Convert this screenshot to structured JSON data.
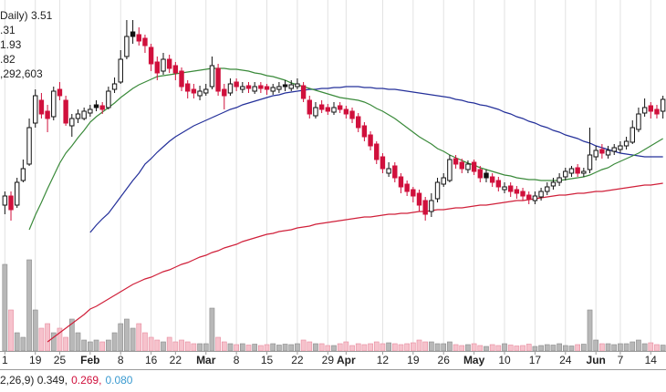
{
  "chart_data": {
    "type": "candlestick",
    "title": "Daily) 3.51",
    "categories": [
      "1",
      null,
      null,
      null,
      null,
      "19",
      null,
      null,
      null,
      "25",
      null,
      null,
      null,
      null,
      "Feb",
      null,
      null,
      null,
      null,
      "8",
      null,
      null,
      null,
      null,
      "16",
      null,
      null,
      null,
      "22",
      null,
      null,
      null,
      null,
      "Mar",
      null,
      null,
      null,
      null,
      "8",
      null,
      null,
      null,
      null,
      "15",
      null,
      null,
      null,
      null,
      "22",
      null,
      null,
      null,
      null,
      "29",
      null,
      null,
      "Apr",
      null,
      null,
      null,
      null,
      null,
      "12",
      null,
      null,
      null,
      null,
      "19",
      null,
      null,
      null,
      null,
      "26",
      null,
      null,
      null,
      null,
      "May",
      null,
      null,
      null,
      null,
      "10",
      null,
      null,
      null,
      null,
      "17",
      null,
      null,
      null,
      null,
      "24",
      null,
      null,
      null,
      null,
      "Jun",
      null,
      null,
      null,
      "7",
      null,
      null,
      null,
      null,
      "14",
      null,
      null
    ],
    "open": [
      2.35,
      2.45,
      2.35,
      2.62,
      2.8,
      3.25,
      3.5,
      3.38,
      3.32,
      3.62,
      3.5,
      3.22,
      3.3,
      3.3,
      3.36,
      3.45,
      3.44,
      3.42,
      3.62,
      3.7,
      3.98,
      4.25,
      4.22,
      4.18,
      4.08,
      3.92,
      3.82,
      3.95,
      3.88,
      3.82,
      3.68,
      3.62,
      3.55,
      3.58,
      3.65,
      3.85,
      3.62,
      3.58,
      3.7,
      3.62,
      3.66,
      3.6,
      3.66,
      3.65,
      3.6,
      3.62,
      3.67,
      3.63,
      3.65,
      3.66,
      3.5,
      3.33,
      3.45,
      3.42,
      3.37,
      3.44,
      3.4,
      3.38,
      3.32,
      3.22,
      3.12,
      3.02,
      2.88,
      2.7,
      2.78,
      2.66,
      2.58,
      2.52,
      2.48,
      2.4,
      2.28,
      2.42,
      2.58,
      2.62,
      2.86,
      2.82,
      2.74,
      2.82,
      2.74,
      2.7,
      2.66,
      2.62,
      2.52,
      2.56,
      2.52,
      2.5,
      2.46,
      2.4,
      2.44,
      2.5,
      2.56,
      2.6,
      2.66,
      2.7,
      2.76,
      2.7,
      2.74,
      2.88,
      2.96,
      2.9,
      2.94,
      2.96,
      3.0,
      3.04,
      3.18,
      3.36,
      3.44,
      3.4,
      3.38
    ],
    "high": [
      2.5,
      2.5,
      2.65,
      2.85,
      3.3,
      3.62,
      3.58,
      3.45,
      3.65,
      3.7,
      3.55,
      3.35,
      3.4,
      3.42,
      3.45,
      3.5,
      3.48,
      3.65,
      3.75,
      4.05,
      4.38,
      4.38,
      4.3,
      4.22,
      4.12,
      3.98,
      4.02,
      4.0,
      3.92,
      3.86,
      3.72,
      3.68,
      3.66,
      3.68,
      3.98,
      3.9,
      3.68,
      3.74,
      3.74,
      3.7,
      3.7,
      3.7,
      3.7,
      3.68,
      3.68,
      3.7,
      3.72,
      3.72,
      3.74,
      3.7,
      3.55,
      3.48,
      3.5,
      3.46,
      3.48,
      3.48,
      3.44,
      3.42,
      3.36,
      3.26,
      3.16,
      3.05,
      2.92,
      2.82,
      2.82,
      2.7,
      2.62,
      2.55,
      2.52,
      2.44,
      2.48,
      2.65,
      2.7,
      2.9,
      2.9,
      2.86,
      2.84,
      2.85,
      2.78,
      2.74,
      2.7,
      2.66,
      2.6,
      2.6,
      2.56,
      2.54,
      2.5,
      2.5,
      2.54,
      2.6,
      2.65,
      2.7,
      2.76,
      2.78,
      2.8,
      2.76,
      3.2,
      3.0,
      3.02,
      3.0,
      3.02,
      3.05,
      3.1,
      3.28,
      3.42,
      3.52,
      3.48,
      3.45,
      3.55
    ],
    "low": [
      2.25,
      2.18,
      2.32,
      2.6,
      2.78,
      3.2,
      3.3,
      3.15,
      3.28,
      3.5,
      3.22,
      3.1,
      3.25,
      3.28,
      3.32,
      3.38,
      3.35,
      3.4,
      3.58,
      3.68,
      3.95,
      4.12,
      4.1,
      4.02,
      3.82,
      3.72,
      3.78,
      3.8,
      3.72,
      3.6,
      3.52,
      3.52,
      3.5,
      3.55,
      3.62,
      3.55,
      3.4,
      3.55,
      3.6,
      3.58,
      3.58,
      3.57,
      3.58,
      3.56,
      3.56,
      3.58,
      3.6,
      3.6,
      3.62,
      3.48,
      3.3,
      3.3,
      3.36,
      3.34,
      3.34,
      3.36,
      3.3,
      3.25,
      3.15,
      3.05,
      2.95,
      2.8,
      2.7,
      2.66,
      2.6,
      2.48,
      2.45,
      2.38,
      2.28,
      2.18,
      2.22,
      2.38,
      2.55,
      2.6,
      2.75,
      2.7,
      2.7,
      2.68,
      2.6,
      2.6,
      2.55,
      2.5,
      2.48,
      2.44,
      2.42,
      2.4,
      2.36,
      2.36,
      2.4,
      2.46,
      2.52,
      2.56,
      2.62,
      2.66,
      2.66,
      2.66,
      2.7,
      2.84,
      2.86,
      2.86,
      2.9,
      2.92,
      2.96,
      3.02,
      3.15,
      3.32,
      3.3,
      3.3,
      3.3
    ],
    "close": [
      2.45,
      2.3,
      2.6,
      2.75,
      3.2,
      3.55,
      3.35,
      3.3,
      3.6,
      3.55,
      3.25,
      3.3,
      3.35,
      3.38,
      3.4,
      3.42,
      3.4,
      3.6,
      3.68,
      3.95,
      4.2,
      4.2,
      4.15,
      4.1,
      3.9,
      3.8,
      3.95,
      3.85,
      3.8,
      3.65,
      3.6,
      3.58,
      3.6,
      3.62,
      3.88,
      3.6,
      3.55,
      3.68,
      3.65,
      3.65,
      3.63,
      3.65,
      3.63,
      3.62,
      3.64,
      3.65,
      3.65,
      3.67,
      3.68,
      3.52,
      3.35,
      3.42,
      3.4,
      3.38,
      3.42,
      3.4,
      3.35,
      3.3,
      3.2,
      3.1,
      3.0,
      2.85,
      2.75,
      2.75,
      2.65,
      2.55,
      2.5,
      2.45,
      2.35,
      2.25,
      2.4,
      2.6,
      2.65,
      2.85,
      2.8,
      2.75,
      2.8,
      2.72,
      2.65,
      2.65,
      2.6,
      2.55,
      2.55,
      2.5,
      2.48,
      2.45,
      2.42,
      2.45,
      2.5,
      2.55,
      2.6,
      2.65,
      2.72,
      2.75,
      2.7,
      2.72,
      2.9,
      2.95,
      2.92,
      2.95,
      2.98,
      3.0,
      3.05,
      3.2,
      3.35,
      3.42,
      3.38,
      3.35,
      3.51
    ],
    "up_color": "#111111",
    "down_color": "#d0103c",
    "ylim": [
      0.75,
      4.6
    ],
    "y2lim": [
      0,
      77000000
    ],
    "volume_up_color": "#b8b8b8",
    "volume_down_color": "#f6c2cc",
    "grid": true,
    "series": [
      {
        "name": ".31",
        "color": "#24309a",
        "values": [
          null,
          null,
          null,
          null,
          null,
          null,
          null,
          null,
          null,
          null,
          null,
          null,
          null,
          null,
          2.05,
          2.13,
          2.2,
          2.26,
          2.35,
          2.44,
          2.53,
          2.62,
          2.7,
          2.8,
          2.86,
          2.93,
          2.99,
          3.05,
          3.1,
          3.14,
          3.18,
          3.22,
          3.25,
          3.28,
          3.31,
          3.34,
          3.37,
          3.4,
          3.42,
          3.45,
          3.47,
          3.49,
          3.51,
          3.53,
          3.55,
          3.56,
          3.58,
          3.59,
          3.6,
          3.61,
          3.62,
          3.62,
          3.63,
          3.63,
          3.64,
          3.64,
          3.65,
          3.65,
          3.65,
          3.64,
          3.64,
          3.63,
          3.63,
          3.62,
          3.62,
          3.61,
          3.6,
          3.59,
          3.58,
          3.57,
          3.56,
          3.55,
          3.54,
          3.53,
          3.51,
          3.5,
          3.48,
          3.47,
          3.45,
          3.44,
          3.42,
          3.4,
          3.37,
          3.35,
          3.32,
          3.3,
          3.27,
          3.25,
          3.22,
          3.2,
          3.17,
          3.15,
          3.12,
          3.1,
          3.08,
          3.05,
          3.03,
          3.0,
          2.98,
          2.96,
          2.94,
          2.92,
          2.91,
          2.9,
          2.89,
          2.88,
          2.88,
          2.88,
          2.88
        ]
      },
      {
        "name": "1.93",
        "color": "#d0203a",
        "values": [
          null,
          null,
          null,
          null,
          null,
          null,
          null,
          0.85,
          0.9,
          0.95,
          1.0,
          1.05,
          1.1,
          1.15,
          1.21,
          1.24,
          1.28,
          1.32,
          1.36,
          1.4,
          1.44,
          1.48,
          1.51,
          1.54,
          1.56,
          1.59,
          1.62,
          1.64,
          1.67,
          1.7,
          1.72,
          1.75,
          1.78,
          1.8,
          1.83,
          1.85,
          1.88,
          1.9,
          1.92,
          1.95,
          1.97,
          1.99,
          2.01,
          2.03,
          2.04,
          2.06,
          2.07,
          2.08,
          2.1,
          2.11,
          2.12,
          2.14,
          2.15,
          2.16,
          2.17,
          2.18,
          2.19,
          2.2,
          2.21,
          2.22,
          2.22,
          2.23,
          2.24,
          2.25,
          2.25,
          2.26,
          2.26,
          2.27,
          2.28,
          2.28,
          2.29,
          2.3,
          2.3,
          2.31,
          2.32,
          2.32,
          2.33,
          2.34,
          2.35,
          2.35,
          2.36,
          2.37,
          2.38,
          2.39,
          2.4,
          2.4,
          2.41,
          2.42,
          2.43,
          2.44,
          2.45,
          2.46,
          2.46,
          2.47,
          2.48,
          2.48,
          2.49,
          2.5,
          2.5,
          2.51,
          2.52,
          2.53,
          2.54,
          2.55,
          2.56,
          2.57,
          2.57,
          2.58,
          2.59
        ]
      },
      {
        "name": ".82",
        "color": "#3a8a3a",
        "values": [
          null,
          null,
          null,
          null,
          2.08,
          2.24,
          2.38,
          2.53,
          2.67,
          2.81,
          2.92,
          3.0,
          3.09,
          3.17,
          3.26,
          3.32,
          3.37,
          3.42,
          3.47,
          3.53,
          3.58,
          3.63,
          3.67,
          3.7,
          3.73,
          3.76,
          3.77,
          3.78,
          3.79,
          3.8,
          3.81,
          3.82,
          3.83,
          3.84,
          3.85,
          3.85,
          3.85,
          3.84,
          3.84,
          3.83,
          3.82,
          3.8,
          3.79,
          3.77,
          3.76,
          3.74,
          3.72,
          3.69,
          3.67,
          3.65,
          3.63,
          3.61,
          3.59,
          3.57,
          3.55,
          3.53,
          3.52,
          3.51,
          3.5,
          3.48,
          3.45,
          3.41,
          3.38,
          3.34,
          3.3,
          3.25,
          3.2,
          3.15,
          3.1,
          3.06,
          3.02,
          2.97,
          2.94,
          2.9,
          2.87,
          2.84,
          2.81,
          2.79,
          2.76,
          2.74,
          2.72,
          2.7,
          2.68,
          2.67,
          2.65,
          2.64,
          2.63,
          2.63,
          2.62,
          2.62,
          2.62,
          2.62,
          2.63,
          2.64,
          2.65,
          2.66,
          2.68,
          2.71,
          2.74,
          2.76,
          2.8,
          2.83,
          2.86,
          2.89,
          2.92,
          2.96,
          3.0,
          3.04,
          3.08
        ]
      },
      {
        "name": ",292,603",
        "color": "#222222",
        "axis": "y2",
        "type": "volume",
        "values": [
          19000000,
          9000000,
          4000000,
          3000000,
          20000000,
          9000000,
          5000000,
          6000000,
          4000000,
          5000000,
          3000000,
          7000000,
          4000000,
          2400000,
          2000000,
          2400000,
          2000000,
          2400000,
          4000000,
          6000000,
          7000000,
          5000000,
          6000000,
          4000000,
          3000000,
          2400000,
          2000000,
          3000000,
          2000000,
          2400000,
          2000000,
          1600000,
          1600000,
          1600000,
          9400000,
          3000000,
          2000000,
          1600000,
          1400000,
          1600000,
          1300000,
          1500000,
          1200000,
          1400000,
          1600000,
          1300000,
          1500000,
          1400000,
          1600000,
          2400000,
          2000000,
          1600000,
          1600000,
          1200000,
          1200000,
          1600000,
          2000000,
          1200000,
          1600000,
          1400000,
          1600000,
          2000000,
          1600000,
          1800000,
          1600000,
          1400000,
          1600000,
          1800000,
          2400000,
          2000000,
          2000000,
          1600000,
          1600000,
          2000000,
          1400000,
          1200000,
          1400000,
          1600000,
          1200000,
          1000000,
          1400000,
          1200000,
          1600000,
          1300000,
          1100000,
          1200000,
          1500000,
          1000000,
          1200000,
          1400000,
          1300000,
          1600000,
          1200000,
          1100000,
          1400000,
          1500000,
          9000000,
          2400000,
          1600000,
          1600000,
          1400000,
          1600000,
          1600000,
          2000000,
          2400000,
          1600000,
          1800000,
          1400000,
          1292603
        ]
      }
    ],
    "macd_legend": [
      {
        "text": "2,26,9) 0.349,",
        "color": "#222222"
      },
      {
        "text": "0.269,",
        "color": "#d0103c"
      },
      {
        "text": "0.080",
        "color": "#3a9ad0"
      }
    ]
  }
}
